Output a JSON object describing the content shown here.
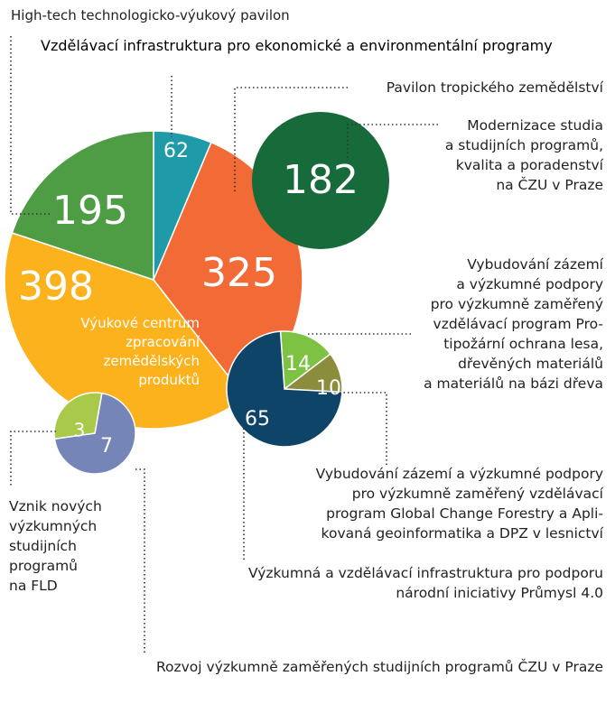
{
  "chart_data": [
    {
      "type": "pie",
      "categories": [
        "Vzdělávací infrastruktura pro ekonomické a environmentální programy",
        "Pavilon tropického zemědělství",
        "Výukové centrum\nzpracování\nzemědělských\nproduktů",
        "High-tech technologicko-výukový pavilon"
      ],
      "values": [
        62,
        325,
        398,
        195
      ],
      "colors": [
        "#1e9aa8",
        "#f26a36",
        "#fbb21d",
        "#4e9d45"
      ]
    },
    {
      "type": "pie",
      "categories": [
        "Modernizace studia\na studijních programů,\nkvalita a poradenství\nna ČZU v Praze"
      ],
      "values": [
        182
      ],
      "colors": [
        "#176a3a"
      ]
    },
    {
      "type": "pie",
      "categories": [
        "Vybudování zázemí\na výzkumné podpory\npro výzkumně zaměřený\nvzdělávací program Pro-\ntipožární ochrana lesa,\ndřevěných materiálů\na materiálů na bázi dřeva",
        "Vybudování zázemí a výzkumné podpory\npro výzkumně zaměřený vzdělávací\nprogram Global Change Forestry a Apli-\nkovaná geoinformatika a DPZ v lesnictví",
        "Výzkumná a vzdělávací infrastruktura pro podporu\nnárodní iniciativy Průmysl 4.0"
      ],
      "values": [
        14,
        10,
        65
      ],
      "colors": [
        "#7dc242",
        "#8b8c3c",
        "#0e4468"
      ]
    },
    {
      "type": "pie",
      "categories": [
        "Rozvoj výzkumně  zaměřených studijních  programů ČZU v Praze",
        "Vznik nových\nvýzkumných\nstudijních\nprogramů\nna FLD"
      ],
      "values": [
        7,
        3
      ],
      "colors": [
        "#7685b8",
        "#a8c94a"
      ]
    }
  ]
}
